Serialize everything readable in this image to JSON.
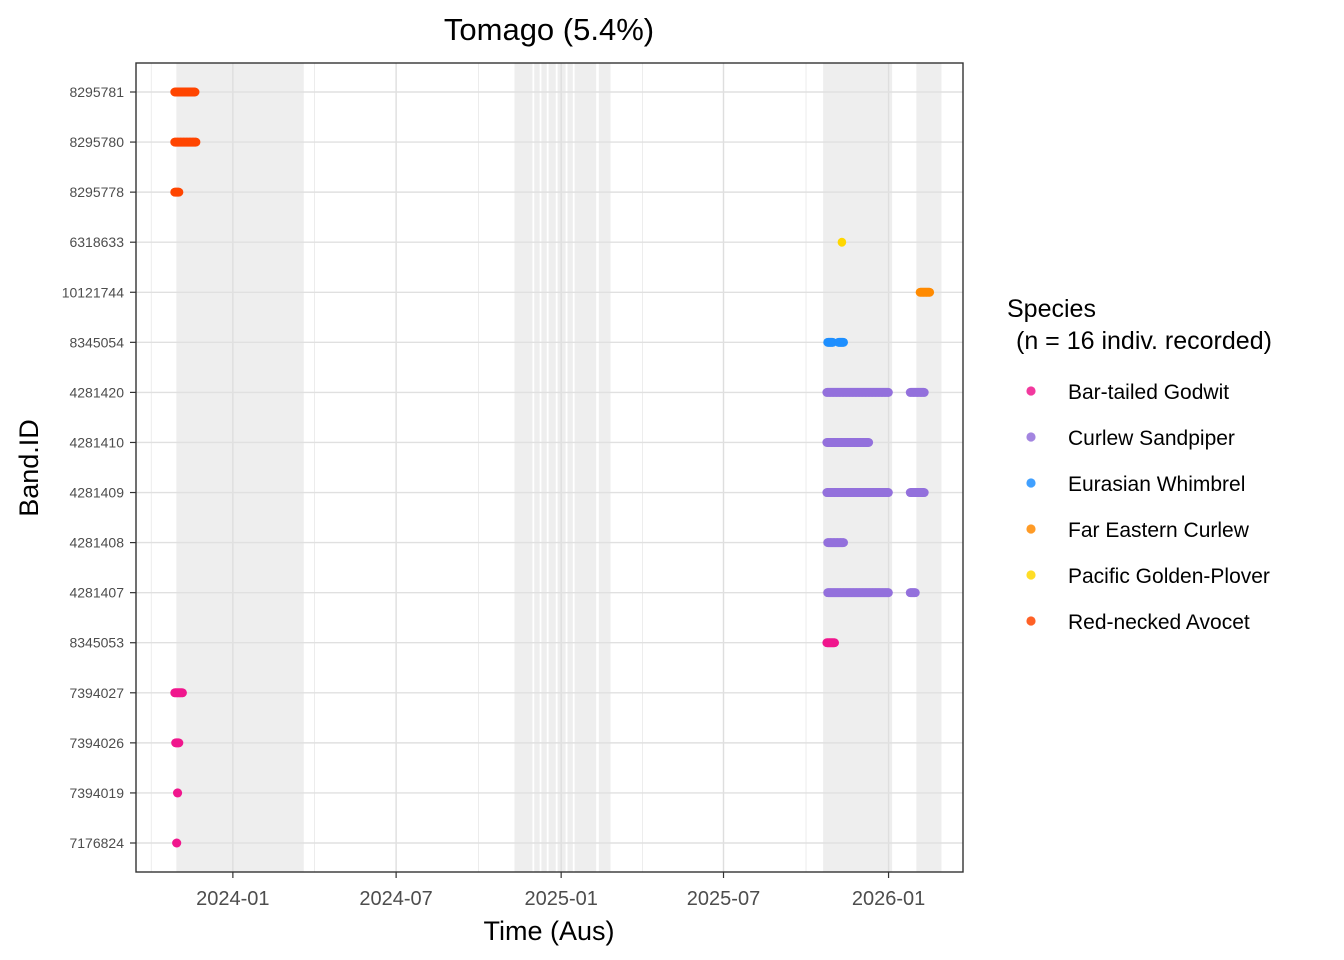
{
  "chart_data": {
    "type": "scatter",
    "title": "Tomago (5.4%)",
    "xlabel": "Time (Aus)",
    "ylabel": "Band.ID",
    "xlim": [
      "2023-09-15",
      "2026-03-25"
    ],
    "x_ticks": [
      {
        "date": "2024-01-01",
        "label": "2024-01"
      },
      {
        "date": "2024-07-01",
        "label": "2024-07"
      },
      {
        "date": "2025-01-01",
        "label": "2025-01"
      },
      {
        "date": "2025-07-01",
        "label": "2025-07"
      },
      {
        "date": "2026-01-01",
        "label": "2026-01"
      }
    ],
    "y_categories": [
      "7176824",
      "7394019",
      "7394026",
      "7394027",
      "8345053",
      "4281407",
      "4281408",
      "4281409",
      "4281410",
      "4281420",
      "8345054",
      "10121744",
      "6318633",
      "8295778",
      "8295780",
      "8295781"
    ],
    "shaded_periods": [
      [
        "2023-10-30",
        "2024-03-20"
      ],
      [
        "2024-11-10",
        "2024-11-30"
      ],
      [
        "2024-12-02",
        "2024-12-08"
      ],
      [
        "2024-12-10",
        "2024-12-16"
      ],
      [
        "2024-12-18",
        "2024-12-26"
      ],
      [
        "2024-12-28",
        "2025-01-06"
      ],
      [
        "2025-01-08",
        "2025-01-14"
      ],
      [
        "2025-01-16",
        "2025-02-09"
      ],
      [
        "2025-02-12",
        "2025-02-25"
      ],
      [
        "2025-10-20",
        "2026-01-05"
      ],
      [
        "2026-02-01",
        "2026-03-01"
      ]
    ],
    "legend": {
      "title_line1": "Species",
      "title_line2": "(n = 16 indiv. recorded)",
      "position": "right"
    },
    "species": [
      {
        "name": "Bar-tailed Godwit",
        "color": "#F0168D"
      },
      {
        "name": "Curlew Sandpiper",
        "color": "#9370DB"
      },
      {
        "name": "Eurasian Whimbrel",
        "color": "#1E8FFF"
      },
      {
        "name": "Far Eastern Curlew",
        "color": "#FF8A00"
      },
      {
        "name": "Pacific Golden-Plover",
        "color": "#FFD700"
      },
      {
        "name": "Red-necked Avocet",
        "color": "#FF4500"
      }
    ],
    "series": [
      {
        "band": "8295781",
        "species": "Red-necked Avocet",
        "segments": [
          [
            "2023-10-28",
            "2023-11-20"
          ]
        ]
      },
      {
        "band": "8295780",
        "species": "Red-necked Avocet",
        "segments": [
          [
            "2023-10-28",
            "2023-11-21"
          ]
        ]
      },
      {
        "band": "8295778",
        "species": "Red-necked Avocet",
        "segments": [
          [
            "2023-10-28",
            "2023-11-02"
          ]
        ]
      },
      {
        "band": "6318633",
        "species": "Pacific Golden-Plover",
        "segments": [
          [
            "2025-11-10",
            "2025-11-10"
          ]
        ]
      },
      {
        "band": "10121744",
        "species": "Far Eastern Curlew",
        "segments": [
          [
            "2026-02-05",
            "2026-02-16"
          ]
        ]
      },
      {
        "band": "8345054",
        "species": "Eurasian Whimbrel",
        "segments": [
          [
            "2025-10-25",
            "2025-10-31"
          ],
          [
            "2025-11-06",
            "2025-11-12"
          ]
        ]
      },
      {
        "band": "4281420",
        "species": "Curlew Sandpiper",
        "segments": [
          [
            "2025-10-24",
            "2026-01-01"
          ],
          [
            "2026-01-25",
            "2026-02-10"
          ]
        ]
      },
      {
        "band": "4281410",
        "species": "Curlew Sandpiper",
        "segments": [
          [
            "2025-10-24",
            "2025-12-10"
          ]
        ]
      },
      {
        "band": "4281409",
        "species": "Curlew Sandpiper",
        "segments": [
          [
            "2025-10-24",
            "2026-01-01"
          ],
          [
            "2026-01-25",
            "2026-02-10"
          ]
        ]
      },
      {
        "band": "4281408",
        "species": "Curlew Sandpiper",
        "segments": [
          [
            "2025-10-25",
            "2025-11-12"
          ]
        ]
      },
      {
        "band": "4281407",
        "species": "Curlew Sandpiper",
        "segments": [
          [
            "2025-10-25",
            "2026-01-01"
          ],
          [
            "2026-01-25",
            "2026-01-31"
          ]
        ]
      },
      {
        "band": "8345053",
        "species": "Bar-tailed Godwit",
        "segments": [
          [
            "2025-10-24",
            "2025-11-02"
          ]
        ]
      },
      {
        "band": "7394027",
        "species": "Bar-tailed Godwit",
        "segments": [
          [
            "2023-10-28",
            "2023-11-06"
          ]
        ]
      },
      {
        "band": "7394026",
        "species": "Bar-tailed Godwit",
        "segments": [
          [
            "2023-10-29",
            "2023-11-02"
          ]
        ]
      },
      {
        "band": "7394019",
        "species": "Bar-tailed Godwit",
        "segments": [
          [
            "2023-10-31",
            "2023-11-01"
          ]
        ]
      },
      {
        "band": "7176824",
        "species": "Bar-tailed Godwit",
        "segments": [
          [
            "2023-10-30",
            "2023-10-31"
          ]
        ]
      }
    ]
  }
}
